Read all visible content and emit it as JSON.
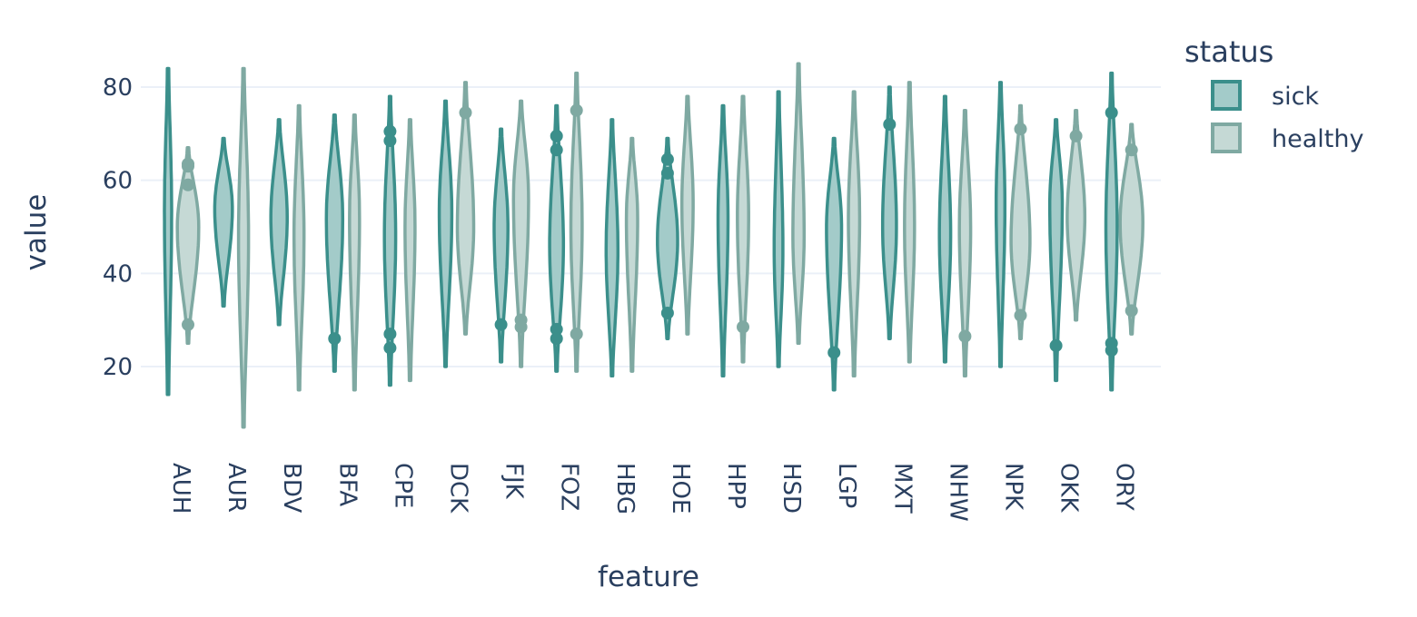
{
  "chart_data": {
    "type": "violin",
    "xlabel": "feature",
    "ylabel": "value",
    "categories": [
      "AUH",
      "AUR",
      "BDV",
      "BFA",
      "CPE",
      "DCK",
      "FJK",
      "FOZ",
      "HBG",
      "HOE",
      "HPP",
      "HSD",
      "LGP",
      "MXT",
      "NHW",
      "NPK",
      "OKK",
      "ORY"
    ],
    "y_ticks": [
      20,
      40,
      60,
      80
    ],
    "ylim": [
      5,
      88
    ],
    "grid": true,
    "legend": {
      "title": "status",
      "placement": "top-right",
      "items": [
        {
          "label": "sick",
          "color": "#3b8f8b",
          "fill": "#a3cbc9"
        },
        {
          "label": "healthy",
          "color": "#7fa9a2",
          "fill": "#c5d9d5"
        }
      ]
    },
    "series": [
      {
        "name": "sick",
        "color": "#3b8f8b",
        "fill": "#a3cbc9",
        "violins": [
          {
            "feature": "AUH",
            "min": 14,
            "max": 84,
            "peak": 53,
            "width": 0.14,
            "outliers": []
          },
          {
            "feature": "AUR",
            "min": 33,
            "max": 69,
            "peak": 54,
            "width": 0.55,
            "outliers": []
          },
          {
            "feature": "BDV",
            "min": 29,
            "max": 73,
            "peak": 52,
            "width": 0.5,
            "outliers": []
          },
          {
            "feature": "BFA",
            "min": 19,
            "max": 74,
            "peak": 52,
            "width": 0.5,
            "outliers": [
              26
            ]
          },
          {
            "feature": "CPE",
            "min": 16,
            "max": 78,
            "peak": 48,
            "width": 0.3,
            "outliers": [
              70.5,
              68.5,
              27,
              24
            ]
          },
          {
            "feature": "DCK",
            "min": 20,
            "max": 77,
            "peak": 53,
            "width": 0.35,
            "outliers": []
          },
          {
            "feature": "FJK",
            "min": 21,
            "max": 71,
            "peak": 50,
            "width": 0.4,
            "outliers": [
              29
            ]
          },
          {
            "feature": "FOZ",
            "min": 19,
            "max": 76,
            "peak": 46,
            "width": 0.4,
            "outliers": [
              69.5,
              66.5,
              28,
              26
            ]
          },
          {
            "feature": "HBG",
            "min": 18,
            "max": 73,
            "peak": 45,
            "width": 0.32,
            "outliers": []
          },
          {
            "feature": "HOE",
            "min": 26,
            "max": 69,
            "peak": 47,
            "width": 0.65,
            "outliers": [
              64.5,
              61.5,
              31.5
            ]
          },
          {
            "feature": "HPP",
            "min": 18,
            "max": 76,
            "peak": 52,
            "width": 0.25,
            "outliers": []
          },
          {
            "feature": "HSD",
            "min": 20,
            "max": 79,
            "peak": 45,
            "width": 0.2,
            "outliers": []
          },
          {
            "feature": "LGP",
            "min": 15,
            "max": 69,
            "peak": 50,
            "width": 0.45,
            "outliers": [
              23
            ]
          },
          {
            "feature": "MXT",
            "min": 26,
            "max": 80,
            "peak": 50,
            "width": 0.4,
            "outliers": [
              72
            ]
          },
          {
            "feature": "NHW",
            "min": 21,
            "max": 78,
            "peak": 48,
            "width": 0.3,
            "outliers": []
          },
          {
            "feature": "NPK",
            "min": 20,
            "max": 81,
            "peak": 55,
            "width": 0.2,
            "outliers": []
          },
          {
            "feature": "OKK",
            "min": 17,
            "max": 73,
            "peak": 55,
            "width": 0.35,
            "outliers": [
              24.5
            ]
          },
          {
            "feature": "ORY",
            "min": 15,
            "max": 83,
            "peak": 50,
            "width": 0.3,
            "outliers": [
              74.5,
              25,
              23.5
            ]
          }
        ]
      },
      {
        "name": "healthy",
        "color": "#7fa9a2",
        "fill": "#c5d9d5",
        "violins": [
          {
            "feature": "AUH",
            "min": 25,
            "max": 67,
            "peak": 50,
            "width": 0.7,
            "outliers": [
              63.5,
              63,
              59,
              29
            ]
          },
          {
            "feature": "AUR",
            "min": 7,
            "max": 84,
            "peak": 48,
            "width": 0.25,
            "outliers": []
          },
          {
            "feature": "BDV",
            "min": 15,
            "max": 76,
            "peak": 48,
            "width": 0.25,
            "outliers": []
          },
          {
            "feature": "BFA",
            "min": 15,
            "max": 74,
            "peak": 52,
            "width": 0.25,
            "outliers": []
          },
          {
            "feature": "CPE",
            "min": 17,
            "max": 73,
            "peak": 50,
            "width": 0.25,
            "outliers": []
          },
          {
            "feature": "DCK",
            "min": 27,
            "max": 81,
            "peak": 50,
            "width": 0.5,
            "outliers": [
              74.5
            ]
          },
          {
            "feature": "FJK",
            "min": 20,
            "max": 77,
            "peak": 56,
            "width": 0.45,
            "outliers": [
              30,
              28.5
            ]
          },
          {
            "feature": "FOZ",
            "min": 19,
            "max": 83,
            "peak": 50,
            "width": 0.3,
            "outliers": [
              75,
              27
            ]
          },
          {
            "feature": "HBG",
            "min": 19,
            "max": 69,
            "peak": 52,
            "width": 0.3,
            "outliers": []
          },
          {
            "feature": "HOE",
            "min": 27,
            "max": 78,
            "peak": 55,
            "width": 0.3,
            "outliers": []
          },
          {
            "feature": "HPP",
            "min": 21,
            "max": 78,
            "peak": 52,
            "width": 0.3,
            "outliers": [
              28.5
            ]
          },
          {
            "feature": "HSD",
            "min": 25,
            "max": 85,
            "peak": 48,
            "width": 0.3,
            "outliers": []
          },
          {
            "feature": "LGP",
            "min": 18,
            "max": 79,
            "peak": 52,
            "width": 0.3,
            "outliers": []
          },
          {
            "feature": "MXT",
            "min": 21,
            "max": 81,
            "peak": 50,
            "width": 0.25,
            "outliers": []
          },
          {
            "feature": "NHW",
            "min": 18,
            "max": 75,
            "peak": 50,
            "width": 0.3,
            "outliers": [
              26.5
            ]
          },
          {
            "feature": "NPK",
            "min": 26,
            "max": 76,
            "peak": 47,
            "width": 0.6,
            "outliers": [
              71,
              31
            ]
          },
          {
            "feature": "OKK",
            "min": 30,
            "max": 75,
            "peak": 52,
            "width": 0.55,
            "outliers": [
              69.5
            ]
          },
          {
            "feature": "ORY",
            "min": 27,
            "max": 72,
            "peak": 51,
            "width": 0.75,
            "outliers": [
              66.5,
              32
            ]
          }
        ]
      }
    ]
  }
}
